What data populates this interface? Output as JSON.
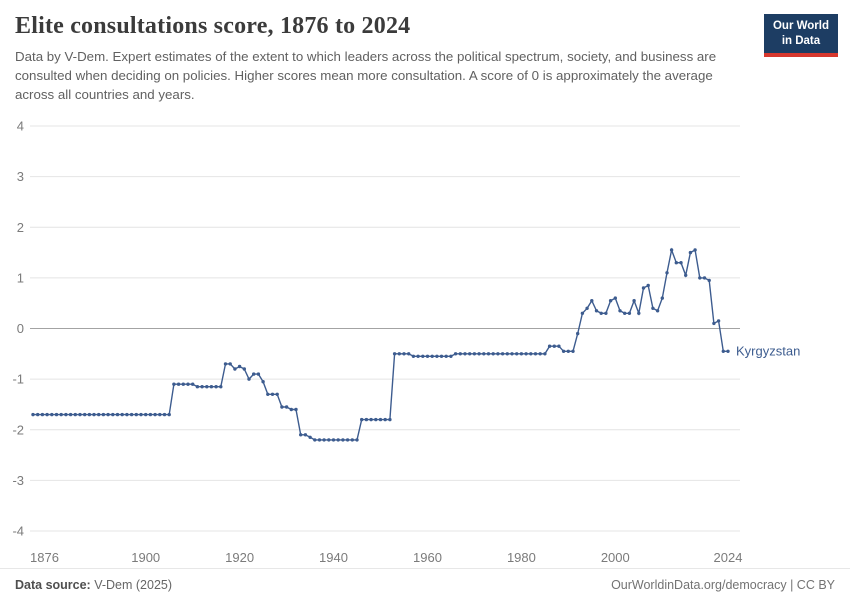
{
  "header": {
    "title": "Elite consultations score, 1876 to 2024",
    "subtitle": "Data by V-Dem. Expert estimates of the extent to which leaders across the political spectrum, society, and business are consulted when deciding on policies. Higher scores mean more consultation. A score of 0 is approximately the average across all countries and years.",
    "logo": {
      "line1": "Our World",
      "line2": "in Data",
      "bg": "#1d3d63",
      "accent": "#d7382e"
    }
  },
  "chart_data": {
    "type": "line",
    "title": "Elite consultations score, 1876 to 2024",
    "entity": "Kyrgyzstan",
    "color": "#3d5c8f",
    "grid_color": "#e4e4e4",
    "zero_line_color": "#a3a3a3",
    "ylim": [
      -4,
      4
    ],
    "yticks": [
      4,
      3,
      2,
      1,
      0,
      -1,
      -2,
      -3,
      -4
    ],
    "xticks": [
      1876,
      1900,
      1920,
      1940,
      1960,
      1980,
      2000,
      2024
    ],
    "x_start": 1876,
    "values": [
      -1.7,
      -1.7,
      -1.7,
      -1.7,
      -1.7,
      -1.7,
      -1.7,
      -1.7,
      -1.7,
      -1.7,
      -1.7,
      -1.7,
      -1.7,
      -1.7,
      -1.7,
      -1.7,
      -1.7,
      -1.7,
      -1.7,
      -1.7,
      -1.7,
      -1.7,
      -1.7,
      -1.7,
      -1.7,
      -1.7,
      -1.7,
      -1.7,
      -1.7,
      -1.7,
      -1.1,
      -1.1,
      -1.1,
      -1.1,
      -1.1,
      -1.15,
      -1.15,
      -1.15,
      -1.15,
      -1.15,
      -1.15,
      -0.7,
      -0.7,
      -0.8,
      -0.75,
      -0.8,
      -1.0,
      -0.9,
      -0.9,
      -1.05,
      -1.3,
      -1.3,
      -1.3,
      -1.55,
      -1.55,
      -1.6,
      -1.6,
      -2.1,
      -2.1,
      -2.15,
      -2.2,
      -2.2,
      -2.2,
      -2.2,
      -2.2,
      -2.2,
      -2.2,
      -2.2,
      -2.2,
      -2.2,
      -1.8,
      -1.8,
      -1.8,
      -1.8,
      -1.8,
      -1.8,
      -1.8,
      -0.5,
      -0.5,
      -0.5,
      -0.5,
      -0.55,
      -0.55,
      -0.55,
      -0.55,
      -0.55,
      -0.55,
      -0.55,
      -0.55,
      -0.55,
      -0.5,
      -0.5,
      -0.5,
      -0.5,
      -0.5,
      -0.5,
      -0.5,
      -0.5,
      -0.5,
      -0.5,
      -0.5,
      -0.5,
      -0.5,
      -0.5,
      -0.5,
      -0.5,
      -0.5,
      -0.5,
      -0.5,
      -0.5,
      -0.35,
      -0.35,
      -0.35,
      -0.45,
      -0.45,
      -0.45,
      -0.1,
      0.3,
      0.4,
      0.55,
      0.35,
      0.3,
      0.3,
      0.55,
      0.6,
      0.35,
      0.3,
      0.3,
      0.55,
      0.3,
      0.8,
      0.85,
      0.4,
      0.35,
      0.6,
      1.1,
      1.55,
      1.3,
      1.3,
      1.05,
      1.5,
      1.55,
      1.0,
      1.0,
      0.95,
      0.1,
      0.15,
      -0.45,
      -0.45
    ]
  },
  "footer": {
    "source_label": "Data source:",
    "source_value": "V-Dem (2025)",
    "url": "OurWorldinData.org/democracy",
    "license": "| CC BY"
  }
}
